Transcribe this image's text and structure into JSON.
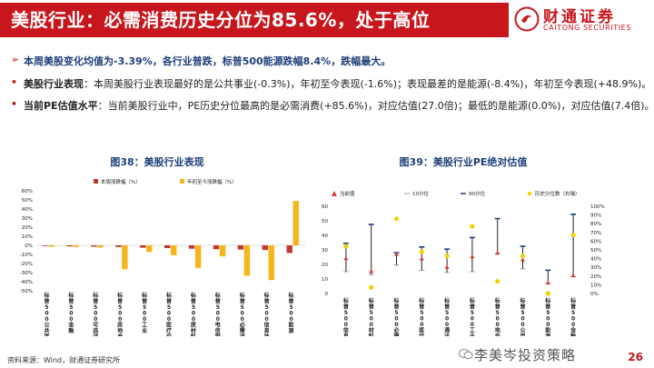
{
  "header": {
    "title": "美股行业：必需消费历史分位为85.6%，处于高位",
    "logo_cn": "财通证券",
    "logo_en": "CAITONG SECURITIES"
  },
  "bullets": [
    {
      "marker": "➢",
      "text": "本周美股变化均值为-3.39%，各行业普跌，标普500能源跌幅8.4%，跌幅最大。"
    },
    {
      "marker": "•",
      "keyword": "美股行业表现",
      "text": "：本周美股行业表现最好的是公共事业(-0.3%)，年初至今表现(-1.6%)；表现最差的是能源(-8.4%)，年初至今表现(+48.9%)。"
    },
    {
      "marker": "•",
      "keyword": "当前PE估值水平",
      "text": "：当前美股行业中，PE历史分位最高的是必需消费(+85.6%)，对应估值(27.0倍)；最低的是能源(0.0%)，对应估值(7.4倍)。"
    }
  ],
  "colors": {
    "accent": "#c8161d",
    "navy": "#1f3e7a",
    "weekly": "#c0392b",
    "ytd": "#f5b51b",
    "current": "#d63a3a",
    "pct_dot": "#f5d000"
  },
  "chart_data": [
    {
      "type": "bar",
      "title": "图38：美股行业表现",
      "legend": [
        "本周涨跌幅（%）",
        "年初至今涨跌幅（%）"
      ],
      "categories": [
        "标普500公共事业",
        "标普500金融",
        "标普500可选消费",
        "标普500房地产",
        "标普500工业",
        "标普500医疗保健",
        "标普500原材料",
        "标普500电信服务",
        "标普500必需消费",
        "标普500信息技术",
        "标普500能源"
      ],
      "series": [
        {
          "name": "本周涨跌幅（%）",
          "values": [
            -0.3,
            -1.2,
            -1.4,
            -1.8,
            -2.6,
            -3.0,
            -3.7,
            -4.3,
            -4.6,
            -5.1,
            -8.4
          ]
        },
        {
          "name": "年初至今涨跌幅（%）",
          "values": [
            -1.6,
            -1.9,
            -2.5,
            -26.3,
            -7.4,
            -10.9,
            -24.8,
            -12.2,
            -33.4,
            -38.2,
            48.9
          ]
        }
      ],
      "yticks": [
        "60%",
        "50%",
        "40%",
        "30%",
        "20%",
        "10%",
        "0%",
        "-10%",
        "-20%",
        "-30%",
        "-40%",
        "-50%"
      ],
      "ylim": [
        -50,
        60
      ]
    },
    {
      "type": "scatter",
      "title": "图39：美股行业PE绝对估值",
      "legend": [
        "当前值",
        "10分位",
        "90分位",
        "历史分位数（右轴）"
      ],
      "categories": [
        "标普500信息技术",
        "标普500材料",
        "标普500必需消费",
        "标普500医疗",
        "标普500通讯设备",
        "标普500工业",
        "标普500地产",
        "标普500公用事业",
        "标普500能源",
        "标普500金融"
      ],
      "series": [
        {
          "name": "当前值",
          "values": [
            24.2,
            15.4,
            27.0,
            24.0,
            18.2,
            25.5,
            28.0,
            23.2,
            7.4,
            12.4
          ]
        },
        {
          "name": "10分位",
          "values": [
            15.0,
            13.0,
            19.5,
            16.0,
            14.5,
            15.0,
            27.5,
            17.0,
            7.0,
            11.5
          ]
        },
        {
          "name": "90分位",
          "values": [
            34.5,
            47.5,
            28.0,
            32.0,
            30.5,
            38.5,
            51.5,
            32.5,
            16.0,
            54.5
          ]
        },
        {
          "name": "历史分位数（右轴）",
          "values": [
            54,
            7,
            85.6,
            48,
            43,
            77,
            14,
            43,
            0,
            67
          ]
        }
      ],
      "yticks_left": [
        "60",
        "50",
        "40",
        "30",
        "20",
        "10",
        "0"
      ],
      "yticks_right": [
        "100%",
        "90%",
        "80%",
        "70%",
        "60%",
        "50%",
        "40%",
        "30%",
        "20%",
        "10%",
        "0%"
      ],
      "ylim": [
        0,
        60
      ],
      "y2lim": [
        0,
        100
      ]
    }
  ],
  "footer": {
    "source": "资料来源：Wind，财通证券研究所",
    "page": "26",
    "watermark": "李美岑投资策略"
  }
}
